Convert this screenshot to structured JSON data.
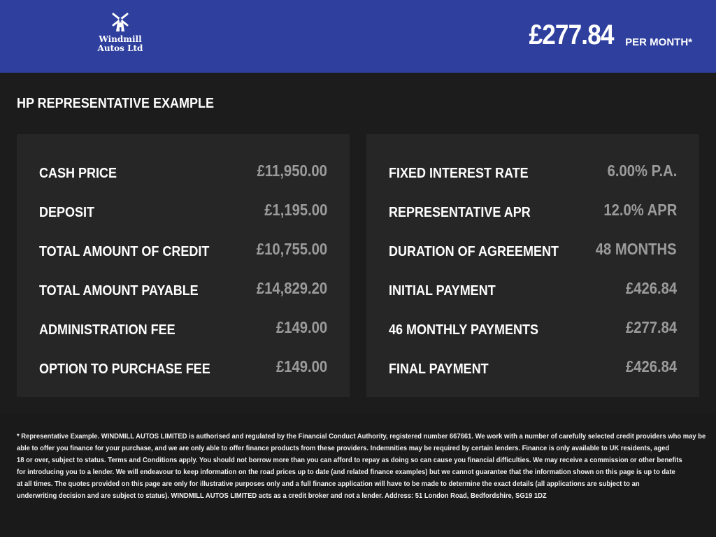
{
  "header": {
    "logo_text": [
      "Windmill",
      "Autos Ltd"
    ],
    "monthly_price": "£277.84",
    "per_month_label": "PER MONTH*",
    "background_color": "#2e3f9e"
  },
  "section_title": "HP REPRESENTATIVE EXAMPLE",
  "left_panel": [
    {
      "label": "CASH PRICE",
      "value": "£11,950.00"
    },
    {
      "label": "DEPOSIT",
      "value": "£1,195.00"
    },
    {
      "label": "TOTAL AMOUNT OF CREDIT",
      "value": "£10,755.00"
    },
    {
      "label": "TOTAL AMOUNT PAYABLE",
      "value": "£14,829.20"
    },
    {
      "label": "ADMINISTRATION FEE",
      "value": "£149.00"
    },
    {
      "label": "OPTION TO PURCHASE FEE",
      "value": "£149.00"
    }
  ],
  "right_panel": [
    {
      "label": "FIXED INTEREST RATE",
      "value": "6.00% P.A."
    },
    {
      "label": "REPRESENTATIVE APR",
      "value": "12.0% APR"
    },
    {
      "label": "DURATION OF AGREEMENT",
      "value": "48 MONTHS"
    },
    {
      "label": "INITIAL PAYMENT",
      "value": "£426.84"
    },
    {
      "label": "46 MONTHLY PAYMENTS",
      "value": "£277.84"
    },
    {
      "label": "FINAL PAYMENT",
      "value": "£426.84"
    }
  ],
  "disclaimer_lines": [
    "* Representative Example. WINDMILL AUTOS LIMITED is authorised and regulated by the Financial Conduct Authority, registered number 667661. We work with a number of carefully selected credit providers who may be",
    "able to offer you finance for your purchase, and we are only able to offer finance products from these providers. Indemnities may be required by certain lenders. Finance is only available to UK residents, aged",
    "18 or over, subject to status. Terms and Conditions apply. You should not borrow more than you can afford to repay as doing so can cause you financial difficulties. We may receive a commission or other benefits",
    "for introducing you to a lender. We will endeavour to keep information on the road prices up to date (and related finance examples) but we cannot guarantee that the information shown on this page is up to date",
    "at all times. The quotes provided on this page are only for illustrative purposes only and a full finance application will have to be made to determine the exact details (all applications are subject to an",
    "underwriting decision and are subject to status). WINDMILL AUTOS LIMITED acts as a credit broker and not a lender. Address: 51 London Road, Bedfordshire, SG19 1DZ"
  ]
}
